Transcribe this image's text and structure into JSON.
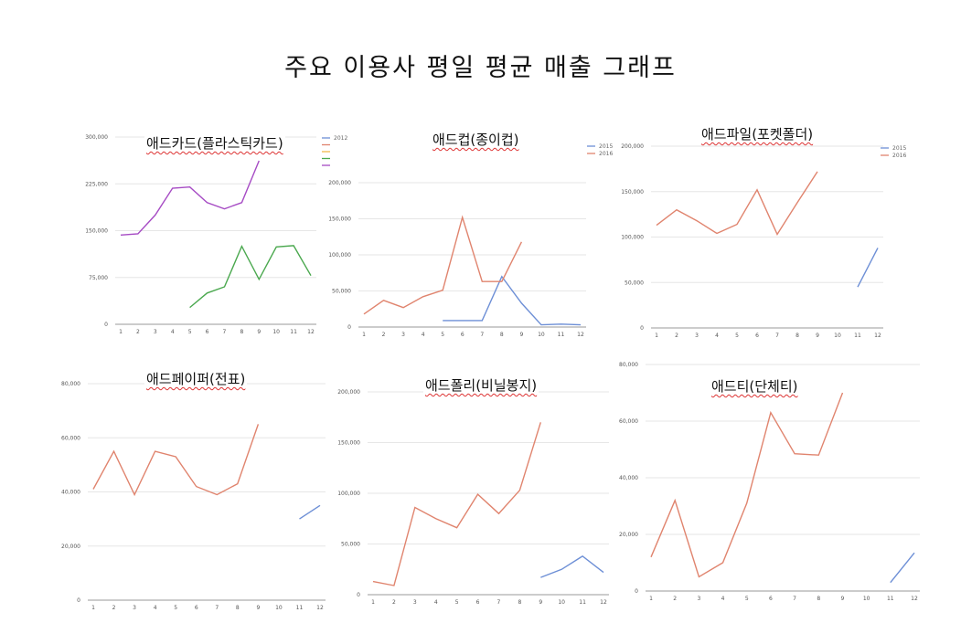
{
  "page": {
    "title": "주요 이용사 평일 평균 매출 그래프"
  },
  "chart_data": [
    {
      "type": "line",
      "title": "애드카드(플라스틱카드)",
      "x": [
        1,
        2,
        3,
        4,
        5,
        6,
        7,
        8,
        9,
        10,
        11,
        12
      ],
      "ylim": [
        0,
        300000
      ],
      "yticks": [
        0,
        75000,
        150000,
        225000,
        300000
      ],
      "ytick_labels": [
        "0",
        "75,000",
        "150,000",
        "225,000",
        "300,000"
      ],
      "legend": "top-right",
      "series": [
        {
          "name": "2012",
          "color": "#6d8fd6",
          "values": [
            null,
            null,
            null,
            null,
            null,
            null,
            null,
            null,
            null,
            null,
            null,
            null
          ]
        },
        {
          "name": "",
          "color": "#e0846e",
          "values": [
            null,
            null,
            null,
            null,
            null,
            null,
            null,
            null,
            null,
            null,
            null,
            null
          ]
        },
        {
          "name": "",
          "color": "#f2b84b",
          "values": [
            null,
            null,
            null,
            null,
            null,
            null,
            null,
            null,
            null,
            null,
            null,
            null
          ]
        },
        {
          "name": "",
          "color": "#4aa84e",
          "values": [
            null,
            null,
            null,
            null,
            27000,
            50000,
            60000,
            125000,
            72000,
            124000,
            126000,
            78000
          ]
        },
        {
          "name": "",
          "color": "#a64bc4",
          "values": [
            143000,
            145000,
            175000,
            218000,
            220000,
            195000,
            185000,
            195000,
            262000,
            null,
            null,
            null
          ]
        }
      ]
    },
    {
      "type": "line",
      "title": "애드컵(종이컵)",
      "x": [
        1,
        2,
        3,
        4,
        5,
        6,
        7,
        8,
        9,
        10,
        11,
        12
      ],
      "ylim": [
        0,
        200000
      ],
      "yticks": [
        0,
        50000,
        100000,
        150000,
        200000
      ],
      "ytick_labels": [
        "0",
        "50,000",
        "100,000",
        "150,000",
        "200,000"
      ],
      "legend": "top-right",
      "series": [
        {
          "name": "2015",
          "color": "#6d8fd6",
          "values": [
            null,
            null,
            null,
            null,
            9000,
            9000,
            9000,
            70000,
            33000,
            3000,
            4000,
            3000
          ]
        },
        {
          "name": "2016",
          "color": "#e0846e",
          "values": [
            18000,
            37000,
            27000,
            42000,
            51000,
            152000,
            63000,
            63000,
            118000,
            null,
            null,
            null
          ]
        }
      ]
    },
    {
      "type": "line",
      "title": "애드파일(포켓폴더)",
      "x": [
        1,
        2,
        3,
        4,
        5,
        6,
        7,
        8,
        9,
        10,
        11,
        12
      ],
      "ylim": [
        0,
        200000
      ],
      "yticks": [
        0,
        50000,
        100000,
        150000,
        200000
      ],
      "ytick_labels": [
        "0",
        "50,000",
        "100,000",
        "150,000",
        "200,000"
      ],
      "legend": "top-right",
      "series": [
        {
          "name": "2015",
          "color": "#6d8fd6",
          "values": [
            null,
            null,
            null,
            null,
            null,
            null,
            null,
            null,
            null,
            null,
            45000,
            88000
          ]
        },
        {
          "name": "2016",
          "color": "#e0846e",
          "values": [
            113000,
            130000,
            118000,
            104000,
            114000,
            152000,
            103000,
            138000,
            172000,
            null,
            null,
            null
          ]
        }
      ]
    },
    {
      "type": "line",
      "title": "애드페이퍼(전표)",
      "x": [
        1,
        2,
        3,
        4,
        5,
        6,
        7,
        8,
        9,
        10,
        11,
        12
      ],
      "ylim": [
        0,
        80000
      ],
      "yticks": [
        0,
        20000,
        40000,
        60000,
        80000
      ],
      "ytick_labels": [
        "0",
        "20,000",
        "40,000",
        "60,000",
        "80,000"
      ],
      "series": [
        {
          "color": "#6d8fd6",
          "values": [
            null,
            null,
            null,
            null,
            null,
            null,
            null,
            null,
            null,
            null,
            30000,
            35000
          ]
        },
        {
          "color": "#e0846e",
          "values": [
            41000,
            55000,
            39000,
            55000,
            53000,
            42000,
            39000,
            43000,
            65000,
            null,
            null,
            null
          ]
        }
      ]
    },
    {
      "type": "line",
      "title": "애드폴리(비닐봉지)",
      "x": [
        1,
        2,
        3,
        4,
        5,
        6,
        7,
        8,
        9,
        10,
        11,
        12
      ],
      "ylim": [
        0,
        200000
      ],
      "yticks": [
        0,
        50000,
        100000,
        150000,
        200000
      ],
      "ytick_labels": [
        "0",
        "50,000",
        "100,000",
        "150,000",
        "200,000"
      ],
      "series": [
        {
          "color": "#6d8fd6",
          "values": [
            null,
            null,
            null,
            null,
            null,
            null,
            null,
            null,
            17000,
            25000,
            38000,
            22000
          ]
        },
        {
          "color": "#e0846e",
          "values": [
            13000,
            9000,
            86000,
            75000,
            66000,
            99000,
            80000,
            103000,
            170000,
            null,
            null,
            null
          ]
        }
      ]
    },
    {
      "type": "line",
      "title": "애드티(단체티)",
      "x": [
        1,
        2,
        3,
        4,
        5,
        6,
        7,
        8,
        9,
        10,
        11,
        12
      ],
      "ylim": [
        0,
        80000
      ],
      "yticks": [
        0,
        20000,
        40000,
        60000,
        80000
      ],
      "ytick_labels": [
        "0",
        "20,000",
        "40,000",
        "60,000",
        "80,000"
      ],
      "series": [
        {
          "color": "#6d8fd6",
          "values": [
            null,
            null,
            null,
            null,
            null,
            null,
            null,
            null,
            null,
            null,
            3000,
            13500
          ]
        },
        {
          "color": "#e0846e",
          "values": [
            12000,
            32000,
            5000,
            10000,
            31000,
            63000,
            48500,
            48000,
            70000,
            null,
            null,
            null
          ]
        }
      ]
    }
  ]
}
